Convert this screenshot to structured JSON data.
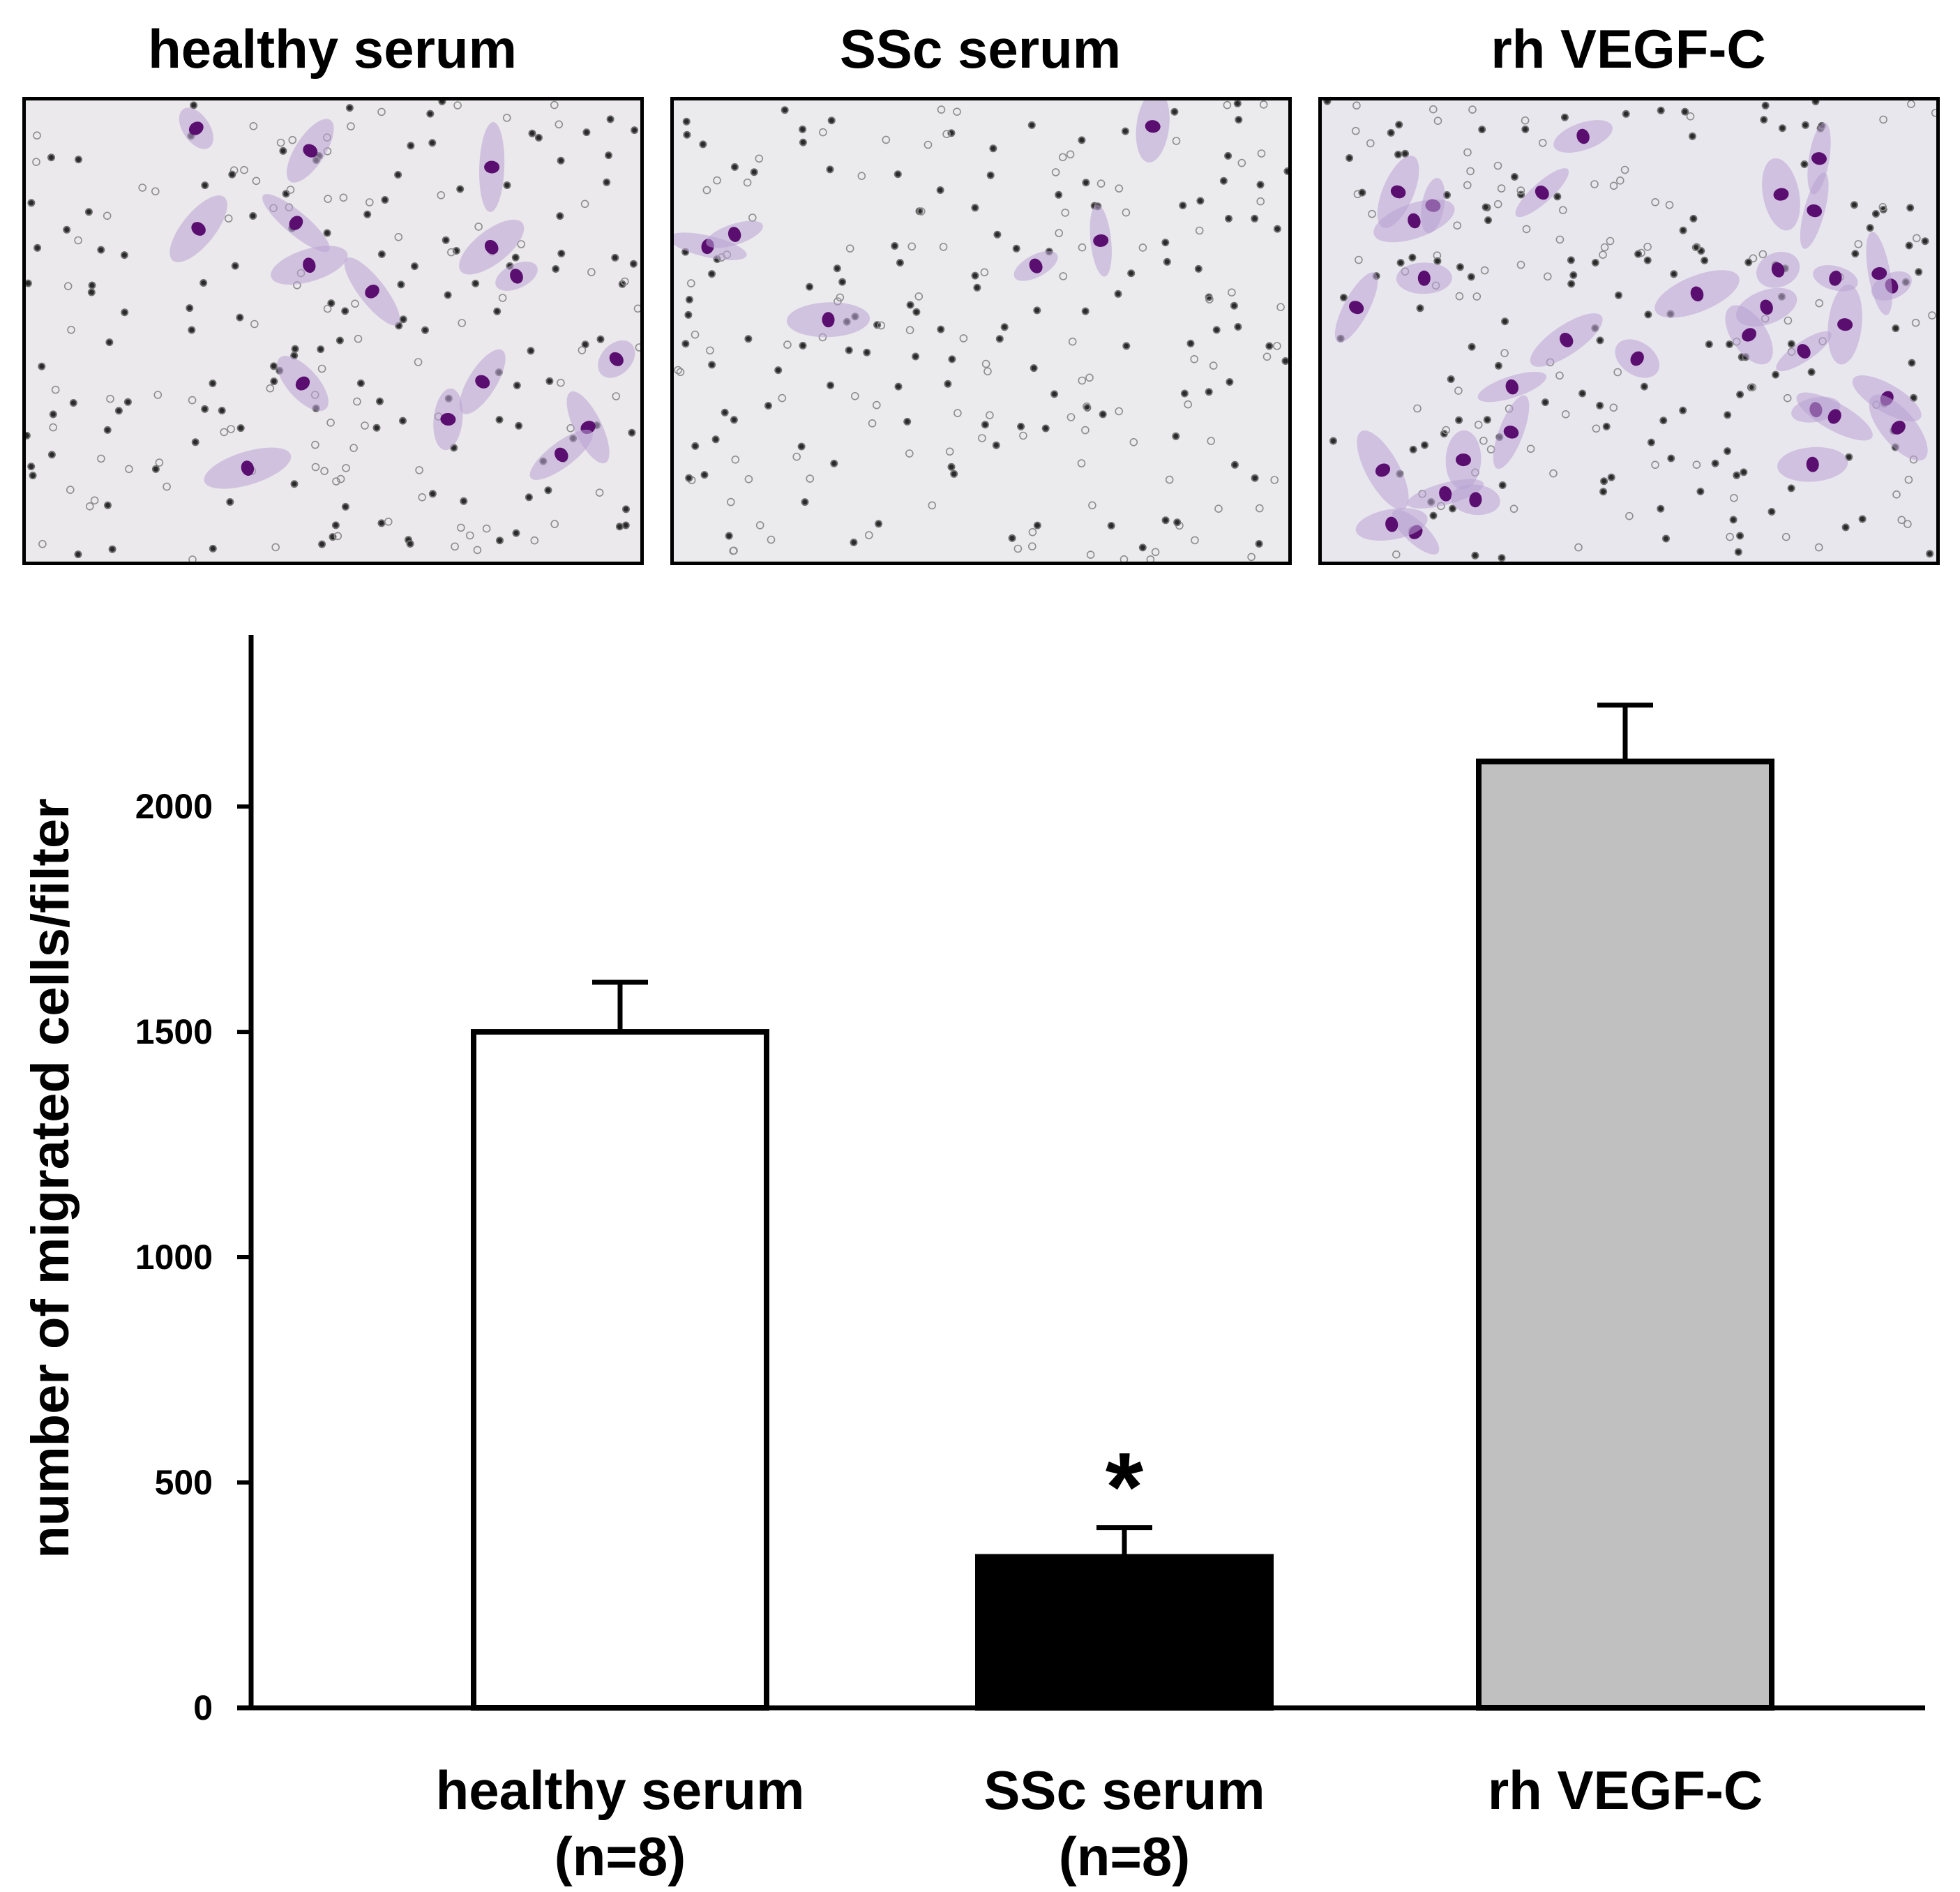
{
  "panels": [
    {
      "title": "healthy serum",
      "fill": "#ebe9ec",
      "cell_color": "#b9a3d4",
      "nucleus_color": "#5a0f70",
      "cells": 16
    },
    {
      "title": "SSc serum",
      "fill": "#ebebee",
      "cell_color": "#b9a3d4",
      "nucleus_color": "#5a0f70",
      "cells": 6
    },
    {
      "title": "rh VEGF-C",
      "fill": "#e8e7ee",
      "cell_color": "#b9a3d4",
      "nucleus_color": "#5a0f70",
      "cells": 34
    }
  ],
  "chart_data": {
    "type": "bar",
    "categories": [
      {
        "name": "healthy serum",
        "n": "(n=8)"
      },
      {
        "name": "SSc serum",
        "n": "(n=8)"
      },
      {
        "name": "rh VEGF-C",
        "n": ""
      }
    ],
    "values": [
      1500,
      335,
      2100
    ],
    "errors": [
      110,
      65,
      125
    ],
    "fill_colors": [
      "#ffffff",
      "#000000",
      "#c0c0c0"
    ],
    "significance": [
      "",
      "*",
      ""
    ],
    "ylabel": "number of migrated cells/filter",
    "xlabel": "",
    "ylim": [
      0,
      2350
    ],
    "yticks": [
      0,
      500,
      1000,
      1500,
      2000
    ],
    "grid": false,
    "legend": "none"
  }
}
